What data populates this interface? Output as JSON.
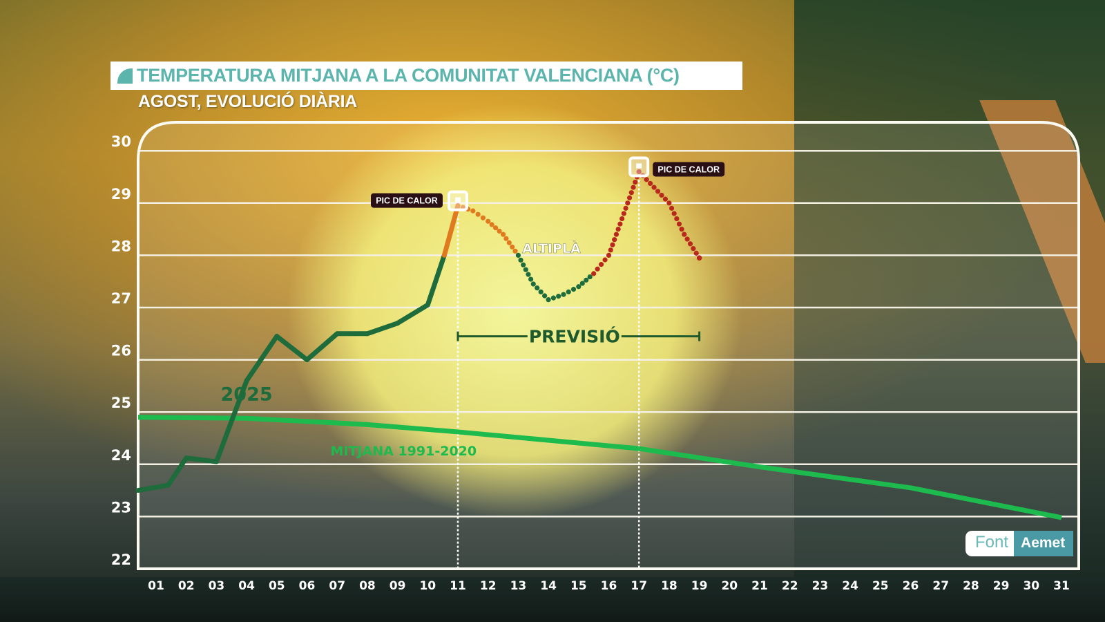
{
  "header": {
    "title": "TEMPERATURA MITJANA A LA COMUNITAT VALENCIANA (°C)",
    "subtitle": "AGOST, EVOLUCIÓ DIÀRIA"
  },
  "source": {
    "label": "Font",
    "value": "Aemet"
  },
  "colors": {
    "title_teal": "#5bb5ad",
    "observed_2025": "#1e6b3c",
    "forecast_hot": "#e07a1f",
    "forecast_very_hot": "#b8281c",
    "forecast_normal": "#1e6b3c",
    "climate_mean": "#1dba4e",
    "label_bg": "#2a0f14",
    "source_teal": "#4a9aa5"
  },
  "chart_data": {
    "type": "line",
    "title": "TEMPERATURA MITJANA A LA COMUNITAT VALENCIANA (°C)",
    "subtitle": "AGOST, EVOLUCIÓ DIÀRIA",
    "xlabel": "",
    "ylabel": "°C",
    "ylim": [
      22,
      30
    ],
    "yticks": [
      22,
      23,
      24,
      25,
      26,
      27,
      28,
      29,
      30
    ],
    "grid": true,
    "categories": [
      "01",
      "02",
      "03",
      "04",
      "05",
      "06",
      "07",
      "08",
      "09",
      "10",
      "11",
      "12",
      "13",
      "14",
      "15",
      "16",
      "17",
      "18",
      "19",
      "20",
      "21",
      "22",
      "23",
      "24",
      "25",
      "26",
      "27",
      "28",
      "29",
      "30",
      "31"
    ],
    "series": [
      {
        "name": "2025",
        "style": "solid",
        "x": [
          1,
          1.4,
          2,
          3,
          4,
          5,
          6,
          7,
          8,
          9,
          10,
          10.55,
          11
        ],
        "values": [
          23.5,
          23.6,
          24.12,
          24.05,
          25.6,
          26.45,
          26.0,
          26.5,
          26.5,
          26.7,
          27.05,
          28.0,
          28.95
        ],
        "segment_colors": [
          "observed",
          "observed",
          "observed",
          "observed",
          "observed",
          "observed",
          "observed",
          "observed",
          "observed",
          "observed",
          "observed",
          "hot"
        ]
      },
      {
        "name": "PREVISIÓ",
        "style": "dotted",
        "x": [
          11,
          11.5,
          12,
          12.5,
          13,
          13.5,
          14,
          14.5,
          15,
          15.5,
          16,
          16.5,
          17,
          17.5,
          18,
          18.5,
          19
        ],
        "values": [
          28.95,
          28.85,
          28.65,
          28.4,
          28.0,
          27.45,
          27.15,
          27.25,
          27.4,
          27.65,
          28.0,
          28.8,
          29.6,
          29.3,
          29.0,
          28.4,
          27.95
        ],
        "point_colors": [
          "hot",
          "hot",
          "hot",
          "hot",
          "normal",
          "normal",
          "normal",
          "normal",
          "normal",
          "normal",
          "very_hot",
          "very_hot",
          "very_hot",
          "very_hot",
          "very_hot",
          "very_hot",
          "very_hot"
        ]
      },
      {
        "name": "MITJANA 1991-2020",
        "style": "solid",
        "x": [
          1,
          4,
          8,
          11,
          17,
          21,
          26,
          31
        ],
        "values": [
          24.9,
          24.88,
          24.76,
          24.62,
          24.3,
          23.95,
          23.55,
          22.98
        ]
      }
    ],
    "annotations": [
      {
        "text": "PIC DE CALOR",
        "day": 11,
        "value": 28.95,
        "marker": "square",
        "vline": true,
        "label_side": "left"
      },
      {
        "text": "PIC DE CALOR",
        "day": 17,
        "value": 29.6,
        "marker": "square",
        "vline": true,
        "label_side": "right"
      },
      {
        "text": "ALTIPLÀ",
        "day": 14.1,
        "value": 28.15
      },
      {
        "text": "PREVISIÓ",
        "from_day": 11,
        "to_day": 19,
        "value": 26.45,
        "type": "range_bracket"
      },
      {
        "text": "2025",
        "day": 4.0,
        "value": 25.35,
        "series": "2025"
      },
      {
        "text": "MITJANA 1991-2020",
        "day": 9.2,
        "value": 24.3,
        "series": "MITJANA 1991-2020"
      }
    ]
  }
}
